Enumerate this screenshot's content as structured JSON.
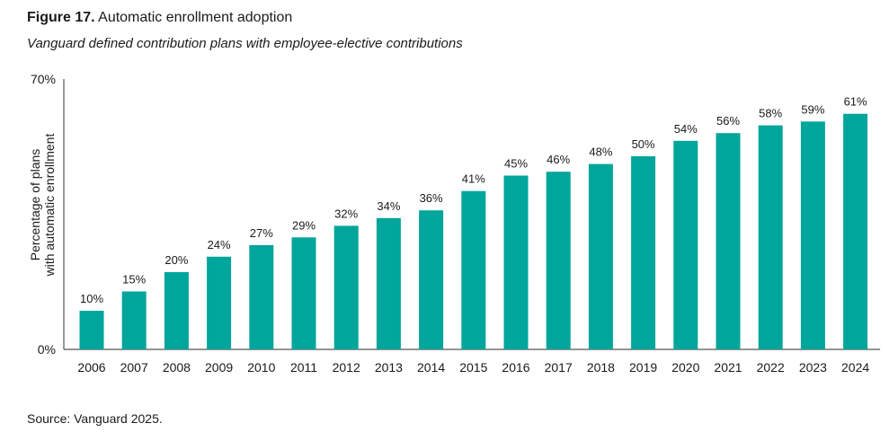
{
  "figure": {
    "number_label": "Figure 17.",
    "title": "Automatic enrollment adoption",
    "subtitle": "Vanguard defined contribution plans with employee-elective contributions",
    "source": "Source: Vanguard 2025."
  },
  "chart_data": {
    "type": "bar",
    "categories": [
      "2006",
      "2007",
      "2008",
      "2009",
      "2010",
      "2011",
      "2012",
      "2013",
      "2014",
      "2015",
      "2016",
      "2017",
      "2018",
      "2019",
      "2020",
      "2021",
      "2022",
      "2023",
      "2024"
    ],
    "values": [
      10,
      15,
      20,
      24,
      27,
      29,
      32,
      34,
      36,
      41,
      45,
      46,
      48,
      50,
      54,
      56,
      58,
      59,
      61
    ],
    "data_labels": [
      "10%",
      "15%",
      "20%",
      "24%",
      "27%",
      "29%",
      "32%",
      "34%",
      "36%",
      "41%",
      "45%",
      "46%",
      "48%",
      "50%",
      "54%",
      "56%",
      "58%",
      "59%",
      "61%"
    ],
    "ylabel_lines": [
      "Percentage of plans",
      "with automatic enrollment"
    ],
    "ytick_labels": [
      "0%",
      "70%"
    ],
    "ylim": [
      0,
      70
    ],
    "grid": false,
    "legend": "none",
    "bar_color": "#00a59b",
    "axis_color": "#555555"
  }
}
